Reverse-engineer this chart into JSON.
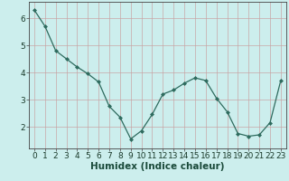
{
  "x": [
    0,
    1,
    2,
    3,
    4,
    5,
    6,
    7,
    8,
    9,
    10,
    11,
    12,
    13,
    14,
    15,
    16,
    17,
    18,
    19,
    20,
    21,
    22,
    23
  ],
  "y": [
    6.3,
    5.7,
    4.8,
    4.5,
    4.2,
    3.95,
    3.65,
    2.75,
    2.35,
    1.55,
    1.85,
    2.45,
    3.2,
    3.35,
    3.6,
    3.8,
    3.7,
    3.05,
    2.55,
    1.75,
    1.65,
    1.7,
    2.15,
    3.7
  ],
  "line_color": "#2e6b5e",
  "marker": "D",
  "marker_size": 2.0,
  "bg_color": "#cceeed",
  "grid_color": "#c8a0a0",
  "xlabel": "Humidex (Indice chaleur)",
  "ylim": [
    1.2,
    6.6
  ],
  "xlim": [
    -0.5,
    23.5
  ],
  "yticks": [
    2,
    3,
    4,
    5,
    6
  ],
  "xticks": [
    0,
    1,
    2,
    3,
    4,
    5,
    6,
    7,
    8,
    9,
    10,
    11,
    12,
    13,
    14,
    15,
    16,
    17,
    18,
    19,
    20,
    21,
    22,
    23
  ],
  "xlabel_fontsize": 7.5,
  "tick_fontsize": 6.5,
  "linewidth": 0.9
}
